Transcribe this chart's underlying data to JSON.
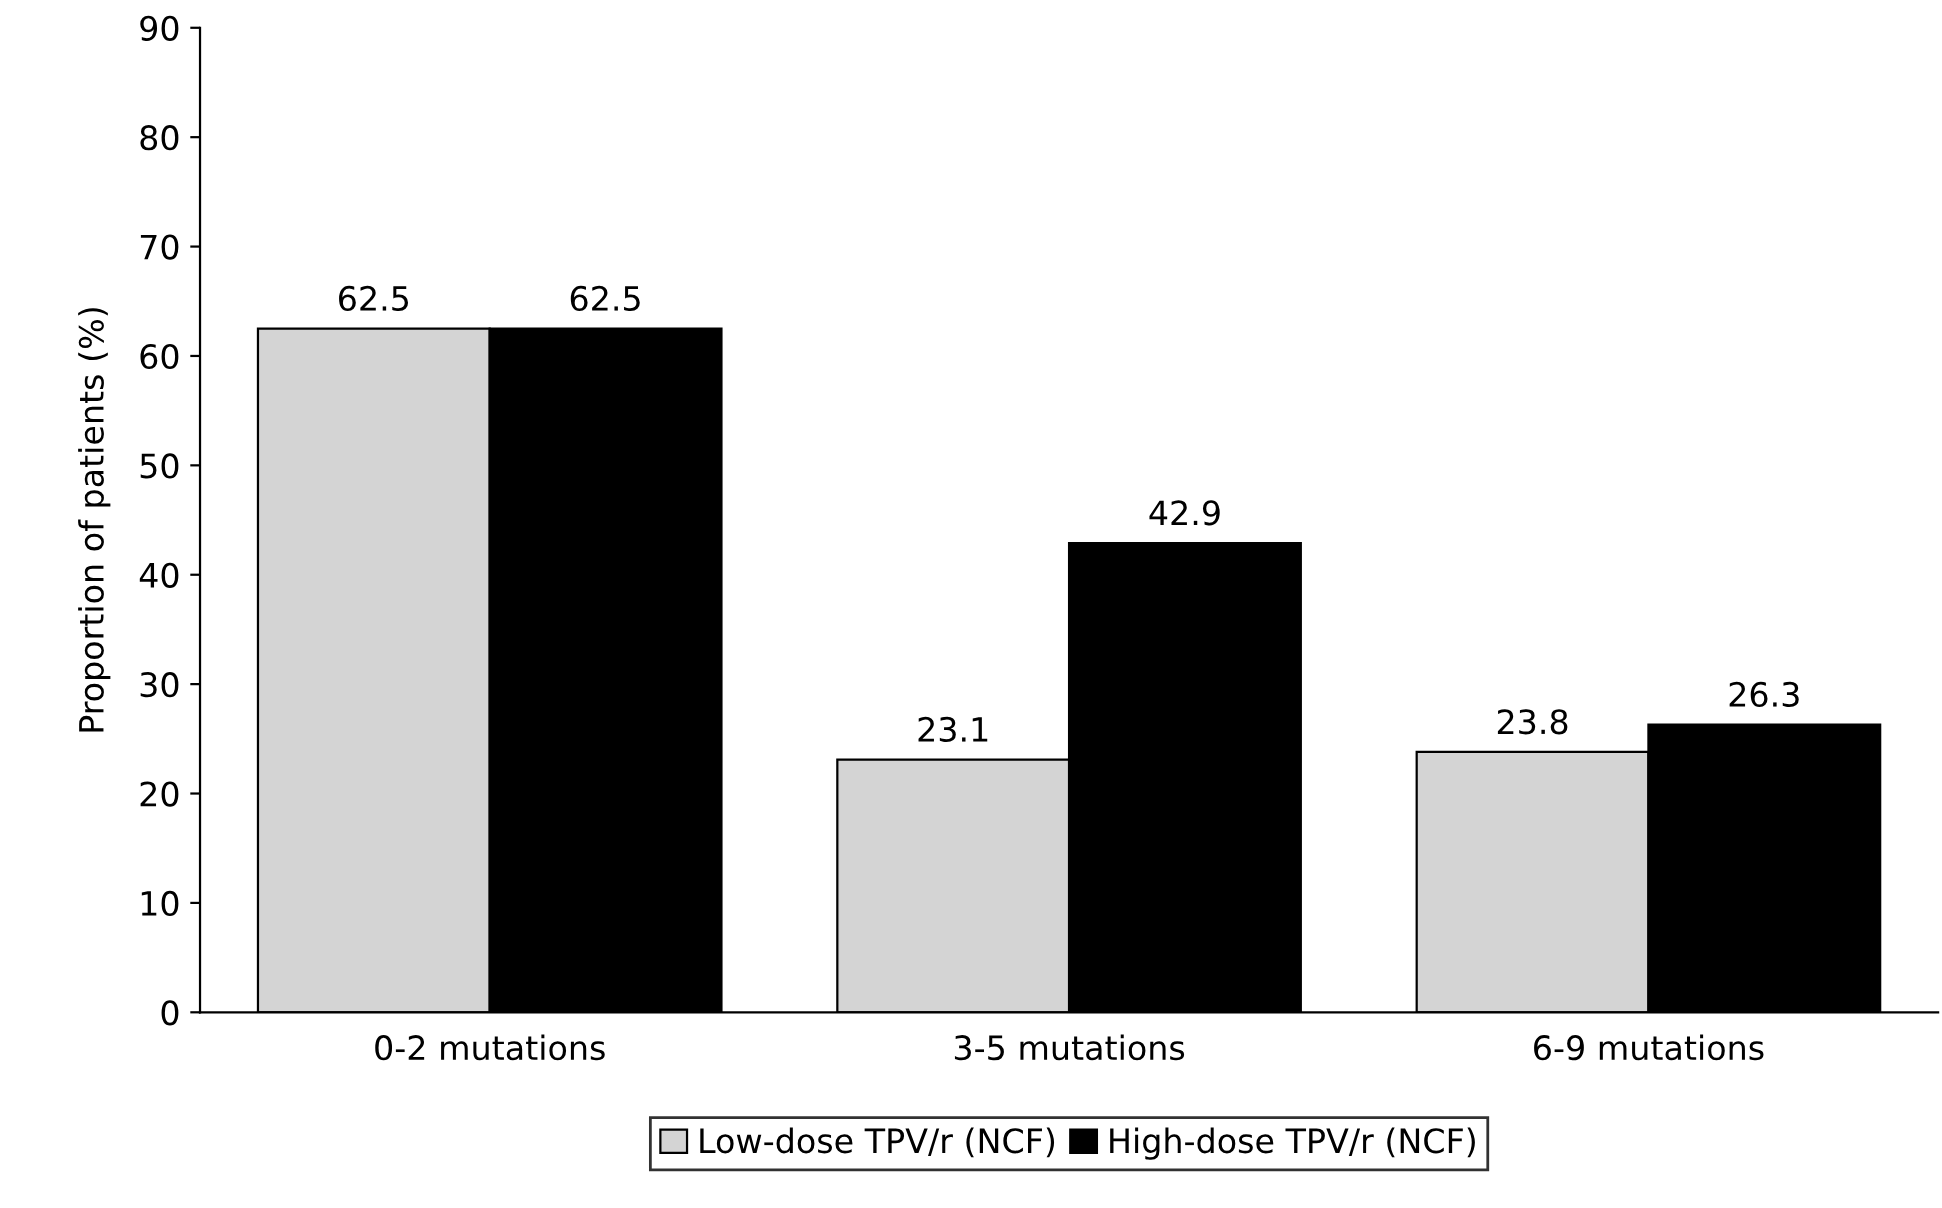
{
  "chart_data": {
    "type": "bar",
    "ylabel": "Proportion of patients (%)",
    "categories": [
      "0-2 mutations",
      "3-5 mutations",
      "6-9 mutations"
    ],
    "series": [
      {
        "name": "Low-dose TPV/r (NCF)",
        "color": "#d4d4d4",
        "values": [
          62.5,
          23.1,
          23.8
        ]
      },
      {
        "name": "High-dose TPV/r (NCF)",
        "color": "#000000",
        "values": [
          62.5,
          42.9,
          26.3
        ]
      }
    ],
    "ylim": [
      0,
      90
    ],
    "yticks": [
      0,
      10,
      20,
      30,
      40,
      50,
      60,
      70,
      80,
      90
    ],
    "data_labels": true,
    "legend": "bottom",
    "grid": false
  }
}
